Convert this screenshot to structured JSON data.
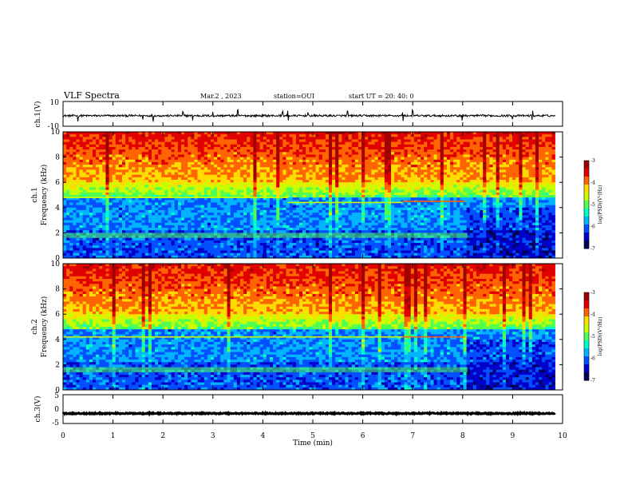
{
  "header": {
    "title": "VLF Spectra",
    "date": "Mar.2 , 2023",
    "station": "station=OUI",
    "start": "start UT = 20: 40: 0"
  },
  "colors": {
    "spectrogram_scale": [
      "#00005a",
      "#0000c8",
      "#0050ff",
      "#00b4ff",
      "#00ffc8",
      "#50ff50",
      "#c8ff00",
      "#ffdc00",
      "#ff6400",
      "#e10000",
      "#a00000"
    ]
  },
  "chart_data": [
    {
      "type": "line",
      "name": "ch1-waveform",
      "ylabel": "ch.1(V)",
      "ylim": [
        -10,
        10
      ],
      "yticks": [
        "10",
        "-10"
      ],
      "xlim": [
        0,
        10
      ],
      "baseline_v": -1.5,
      "noise_v": 0.8,
      "spikes_min": [
        0.3,
        1.6,
        1.8,
        2.4,
        2.6,
        3.0,
        3.5,
        4.4,
        4.5,
        4.9,
        5.7,
        6.8,
        7.0,
        7.9,
        8.0,
        9.0,
        9.4
      ]
    },
    {
      "type": "heatmap",
      "name": "ch1-spectrogram",
      "ylabel": "ch.1\nFrequency (kHz)",
      "xlim": [
        0,
        10
      ],
      "ylim": [
        0,
        10
      ],
      "yticks": [
        "0",
        "2",
        "4",
        "6",
        "8",
        "10"
      ],
      "colorbar": {
        "label": "log(PSD)(V²/Hz)",
        "range": [
          -7,
          -3
        ],
        "ticks": [
          "-3",
          "-4",
          "-5",
          "-6",
          "-7"
        ]
      },
      "tone_khz": [
        [
          0,
          4.5,
          4.8
        ],
        [
          4.5,
          6.8,
          4.4
        ],
        [
          6.8,
          8.05,
          4.5
        ]
      ],
      "band_khz": [
        1.6,
        2.0
      ],
      "band_end_min": 8.1
    },
    {
      "type": "heatmap",
      "name": "ch2-spectrogram",
      "ylabel": "ch.2\nFrequency (kHz)",
      "xlim": [
        0,
        10
      ],
      "ylim": [
        0,
        10
      ],
      "yticks": [
        "0",
        "2",
        "4",
        "6",
        "8",
        "10"
      ],
      "colorbar": {
        "label": "log(PSD)(V²/Hz)",
        "range": [
          -7,
          -3
        ],
        "ticks": [
          "-3",
          "-4",
          "-5",
          "-6",
          "-7"
        ]
      },
      "tone_khz": [
        [
          0,
          4.5,
          4.2
        ],
        [
          4.5,
          6.8,
          4.2
        ],
        [
          6.8,
          8.05,
          4.2
        ]
      ],
      "band_khz": [
        1.4,
        1.8
      ],
      "band_end_min": 8.1
    },
    {
      "type": "line",
      "name": "ch3-waveform",
      "ylabel": "ch.3(V)",
      "ylim": [
        -5,
        5
      ],
      "yticks": [
        "5",
        "0",
        "-5"
      ],
      "xlim": [
        0,
        10
      ],
      "baseline_v": -1.5,
      "noise_v": 0.2
    }
  ],
  "xaxis": {
    "label": "Time (min)",
    "ticks": [
      "0",
      "1",
      "2",
      "3",
      "4",
      "5",
      "6",
      "7",
      "8",
      "9",
      "10"
    ]
  }
}
